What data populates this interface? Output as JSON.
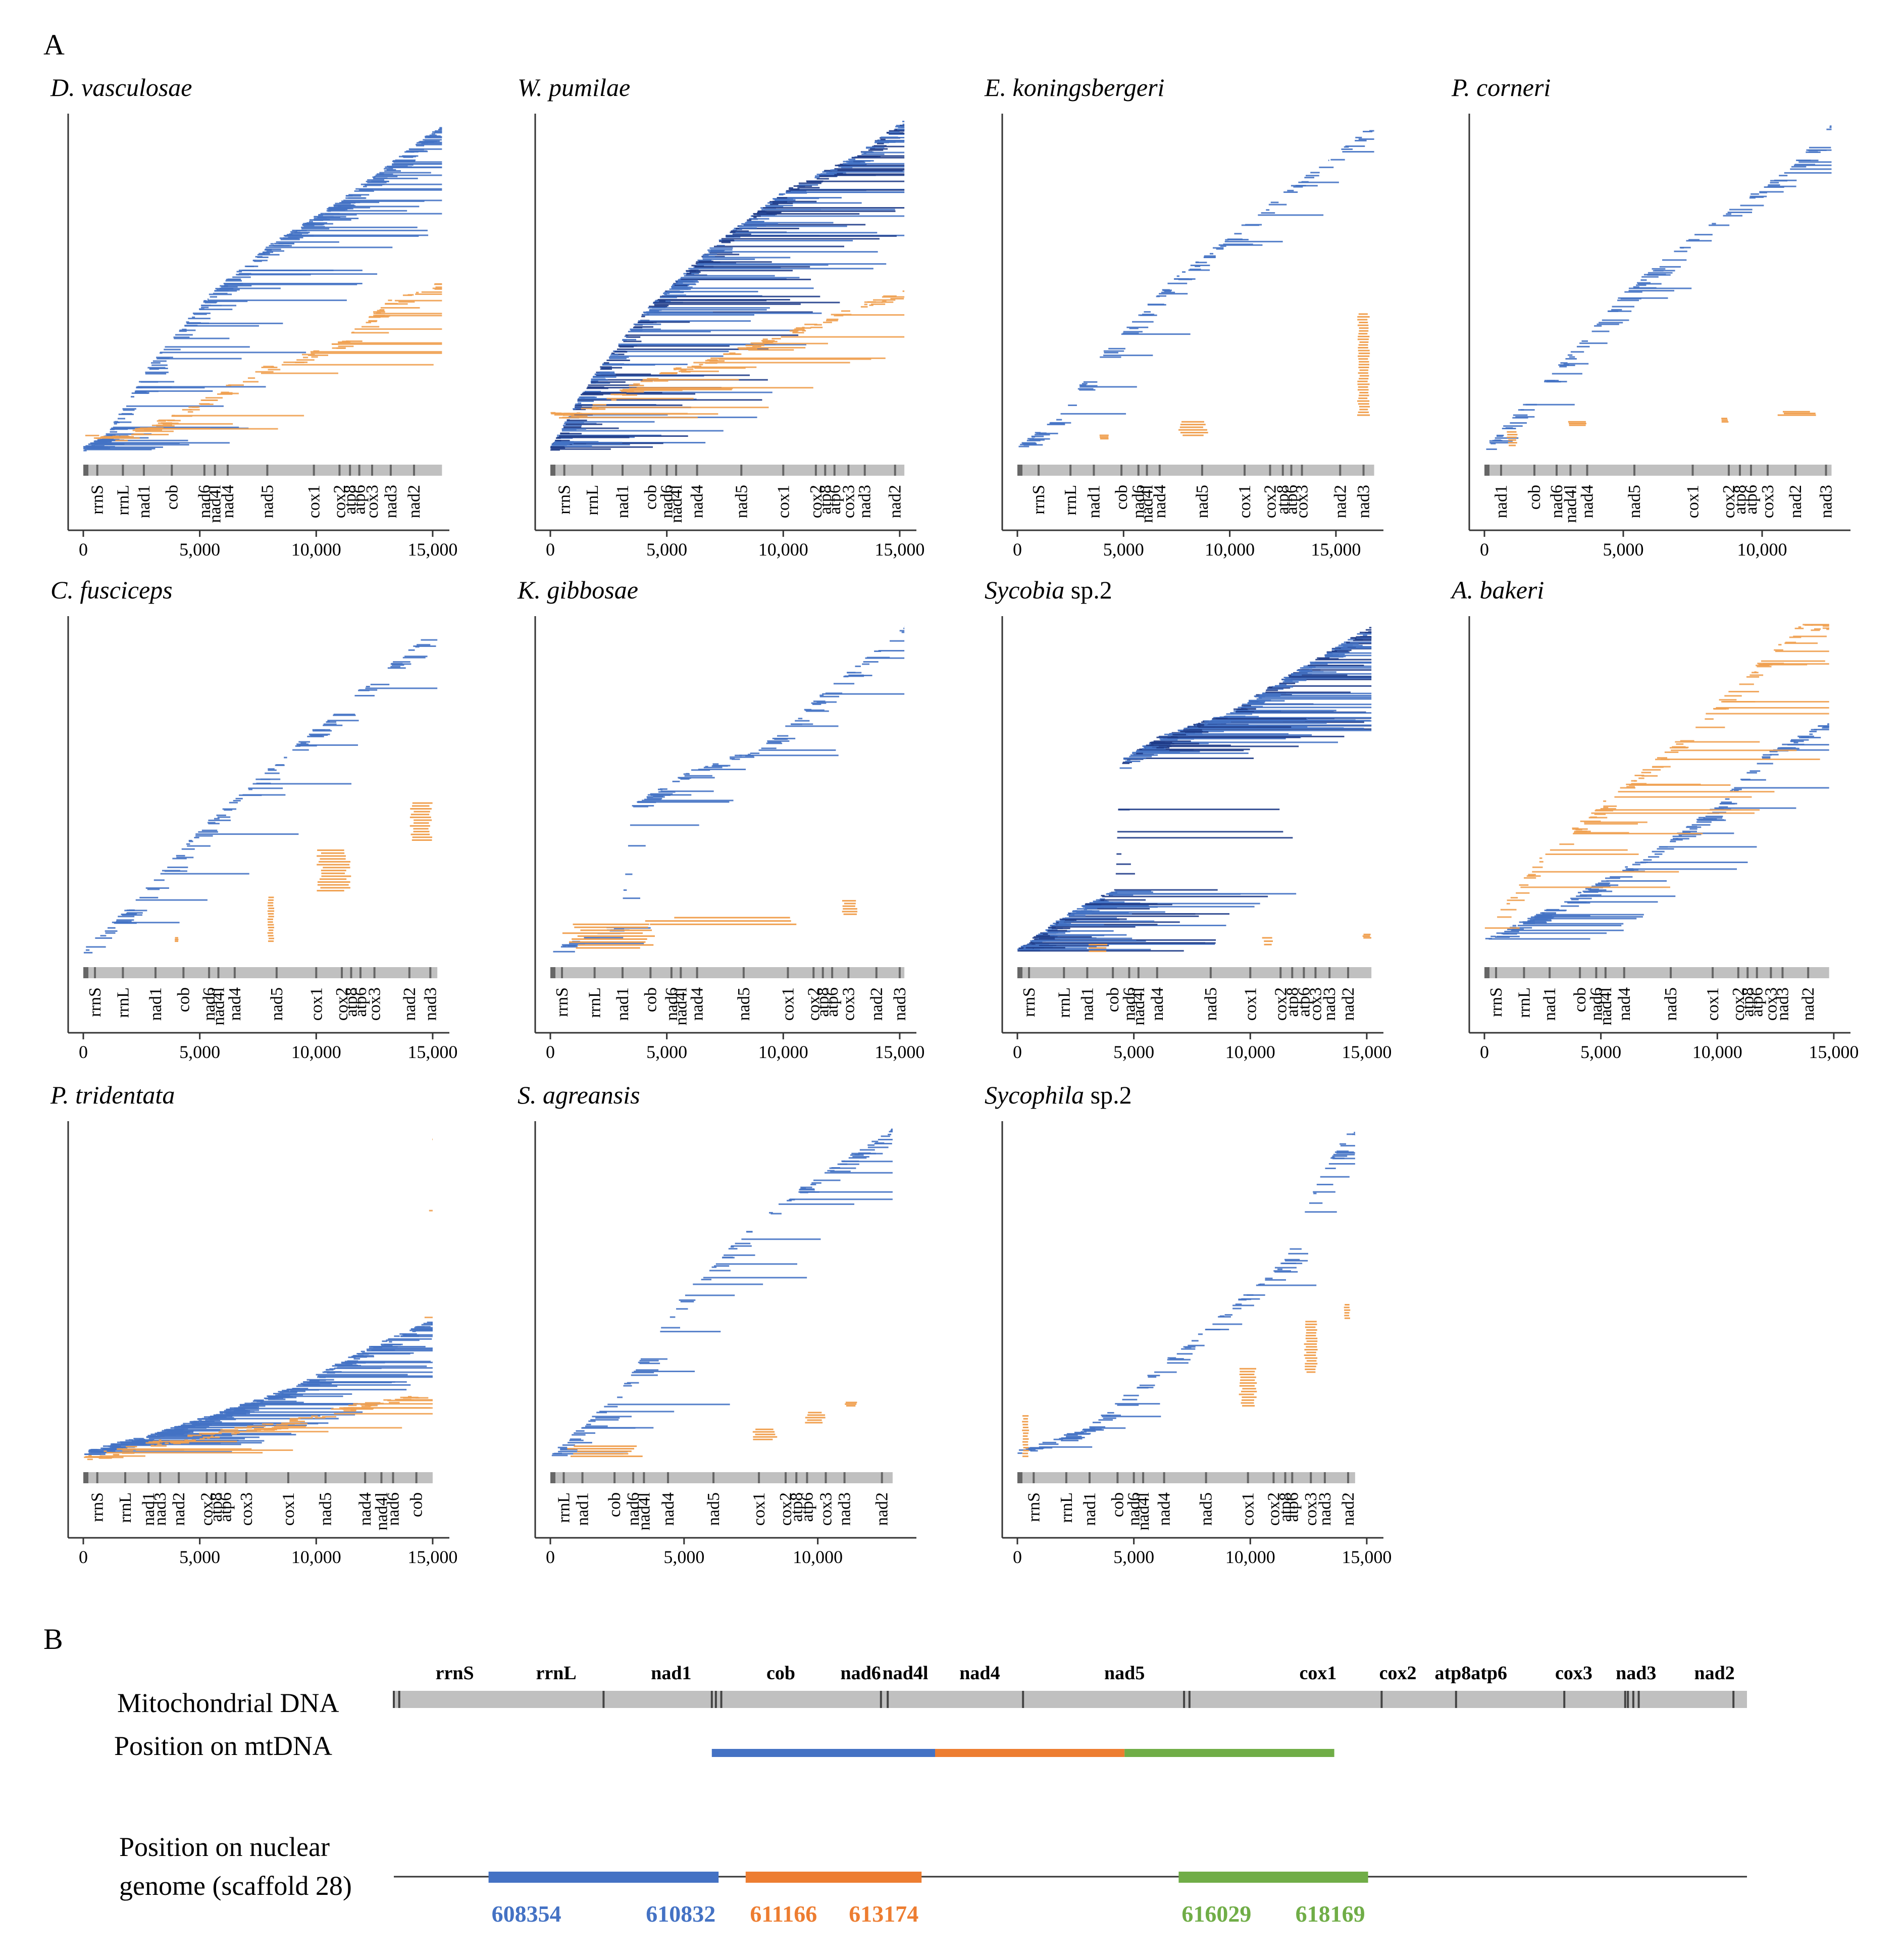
{
  "figure": {
    "panel_a_label": "A",
    "panel_b_label": "B",
    "xtick_labels": [
      "0",
      "5,000",
      "10,000",
      "15,000"
    ],
    "colors": {
      "mt_read": "#4472C4",
      "mt_read_dark": "#1F3C88",
      "numt_read": "#F0A050",
      "genome_bar": "#C0C0C0",
      "genome_tick": "#666666",
      "segment1": "#4472C4",
      "segment2": "#ED7D31",
      "segment3": "#70AD47"
    }
  },
  "chart_data": [
    {
      "type": "scatter",
      "title_italic": "D. vasculosae",
      "title_plain": "",
      "xlim": [
        0,
        15500
      ],
      "genome_length": 15400,
      "genes": [
        "rrnS",
        "rrnL",
        "nad1",
        "cob",
        "nad6",
        "nad4l",
        "nad4",
        "nad5",
        "cox1",
        "cox2",
        "atp8",
        "atp6",
        "cox3",
        "nad3",
        "nad2"
      ],
      "gene_positions": [
        600,
        1700,
        2600,
        3800,
        5200,
        5650,
        6200,
        7900,
        9900,
        11000,
        11450,
        11850,
        12400,
        13200,
        14200
      ],
      "mt_track": [
        [
          0,
          0.02
        ],
        [
          1000,
          0.06
        ],
        [
          3000,
          0.28
        ],
        [
          5500,
          0.48
        ],
        [
          8000,
          0.62
        ],
        [
          11000,
          0.75
        ],
        [
          13500,
          0.88
        ],
        [
          15400,
          0.98
        ]
      ],
      "mt_tail": [
        0.3,
        0.7,
        0.5
      ],
      "mt_density": "dense",
      "numt_visible": true,
      "numt_track": [
        [
          1500,
          0.05
        ],
        [
          4000,
          0.12
        ],
        [
          7500,
          0.25
        ],
        [
          11000,
          0.33
        ],
        [
          13000,
          0.45
        ],
        [
          15400,
          0.51
        ]
      ],
      "numt_density": "medium"
    },
    {
      "type": "scatter",
      "title_italic": "W. pumilae",
      "title_plain": "",
      "xlim": [
        0,
        15500
      ],
      "genome_length": 15200,
      "genes": [
        "rrnS",
        "rrnL",
        "nad1",
        "cob",
        "nad6",
        "nad4l",
        "nad4",
        "nad5",
        "cox1",
        "cox2",
        "atp8",
        "atp6",
        "cox3",
        "nad3",
        "nad2"
      ],
      "gene_positions": [
        600,
        1800,
        3100,
        4300,
        5000,
        5400,
        6300,
        8200,
        10000,
        11400,
        11800,
        12200,
        12800,
        13500,
        14800
      ],
      "mt_track": [
        [
          0,
          0.02
        ],
        [
          1500,
          0.2
        ],
        [
          4000,
          0.42
        ],
        [
          7000,
          0.62
        ],
        [
          10000,
          0.78
        ],
        [
          13000,
          0.88
        ],
        [
          15200,
          0.99
        ]
      ],
      "mt_tail": [
        0.4,
        0.9,
        0.6
      ],
      "mt_density": "very dense",
      "numt_visible": true,
      "numt_track": [
        [
          1000,
          0.12
        ],
        [
          4000,
          0.22
        ],
        [
          8000,
          0.31
        ],
        [
          12000,
          0.41
        ],
        [
          15200,
          0.49
        ]
      ],
      "numt_density": "medium"
    },
    {
      "type": "scatter",
      "title_italic": "E. koningsbergeri",
      "title_plain": "",
      "xlim": [
        0,
        17000
      ],
      "genome_length": 16800,
      "genes": [
        "rrnS",
        "rrnL",
        "nad1",
        "cob",
        "nad6",
        "nad4l",
        "nad4",
        "nad5",
        "cox1",
        "cox2",
        "atp8",
        "atp6",
        "cox3",
        "nad2",
        "nad3"
      ],
      "gene_positions": [
        1000,
        2500,
        3600,
        4900,
        5700,
        6100,
        6700,
        8700,
        10700,
        11900,
        12500,
        12900,
        13400,
        15200,
        16300
      ],
      "mt_track": [
        [
          0,
          0.02
        ],
        [
          2000,
          0.12
        ],
        [
          4000,
          0.3
        ],
        [
          7000,
          0.5
        ],
        [
          10000,
          0.65
        ],
        [
          13000,
          0.8
        ],
        [
          16800,
          0.98
        ]
      ],
      "mt_tail": [
        0.15,
        0.35,
        0.2
      ],
      "mt_density": "sparse",
      "numt_visible": true,
      "numt_clusters": [
        [
          3800,
          4300,
          0.05,
          0.06
        ],
        [
          7500,
          9000,
          0.06,
          0.1
        ],
        [
          16000,
          16600,
          0.12,
          0.42
        ]
      ],
      "numt_density": "sparse"
    },
    {
      "type": "scatter",
      "title_italic": "P. corneri",
      "title_plain": "",
      "xlim": [
        0,
        13000
      ],
      "genome_length": 12500,
      "genes": [
        "nad1",
        "cob",
        "nad6",
        "nad4l",
        "nad4",
        "nad5",
        "cox1",
        "cox2",
        "atp8",
        "atp6",
        "cox3",
        "nad2",
        "nad3"
      ],
      "gene_positions": [
        600,
        1800,
        2600,
        3100,
        3700,
        5400,
        7500,
        8800,
        9200,
        9600,
        10200,
        11200,
        12300
      ],
      "mt_track": [
        [
          0,
          0.02
        ],
        [
          2000,
          0.2
        ],
        [
          5000,
          0.48
        ],
        [
          8000,
          0.68
        ],
        [
          11000,
          0.85
        ],
        [
          12500,
          0.98
        ]
      ],
      "mt_tail": [
        0.2,
        0.45,
        0.25
      ],
      "mt_density": "sparse",
      "numt_visible": true,
      "numt_clusters": [
        [
          800,
          1200,
          0.03,
          0.07
        ],
        [
          3000,
          3800,
          0.09,
          0.1
        ],
        [
          8500,
          8800,
          0.1,
          0.11
        ],
        [
          10500,
          12000,
          0.12,
          0.13
        ]
      ],
      "numt_density": "sparse"
    },
    {
      "type": "scatter",
      "title_italic": "C. fusciceps",
      "title_plain": "",
      "xlim": [
        0,
        15500
      ],
      "genome_length": 15200,
      "genes": [
        "rrnS",
        "rrnL",
        "nad1",
        "cob",
        "nad6",
        "nad4l",
        "nad4",
        "nad5",
        "cox1",
        "cox2",
        "atp8",
        "atp6",
        "cox3",
        "nad2",
        "nad3"
      ],
      "gene_positions": [
        500,
        1700,
        3100,
        4300,
        5400,
        5800,
        6500,
        8300,
        10000,
        11100,
        11500,
        11900,
        12500,
        14000,
        14900
      ],
      "mt_track": [
        [
          0,
          0.02
        ],
        [
          2000,
          0.15
        ],
        [
          5000,
          0.38
        ],
        [
          9000,
          0.62
        ],
        [
          12000,
          0.8
        ],
        [
          15200,
          0.98
        ]
      ],
      "mt_tail": [
        0.15,
        0.5,
        0.25
      ],
      "mt_density": "sparse",
      "numt_visible": true,
      "numt_clusters": [
        [
          3900,
          4100,
          0.05,
          0.06
        ],
        [
          7900,
          8200,
          0.05,
          0.18
        ],
        [
          10000,
          11500,
          0.2,
          0.32
        ],
        [
          14000,
          15000,
          0.35,
          0.46
        ]
      ],
      "numt_density": "sparse"
    },
    {
      "type": "scatter",
      "title_italic": "K. gibbosae",
      "title_plain": "",
      "xlim": [
        0,
        15500
      ],
      "genome_length": 15200,
      "genes": [
        "rrnS",
        "rrnL",
        "nad1",
        "cob",
        "nad6",
        "nad4l",
        "nad4",
        "nad5",
        "cox1",
        "cox2",
        "atp8",
        "atp6",
        "cox3",
        "nad2",
        "nad3"
      ],
      "gene_positions": [
        500,
        1900,
        3100,
        4300,
        5200,
        5600,
        6300,
        8300,
        10200,
        11300,
        11700,
        12100,
        12800,
        14000,
        15000
      ],
      "mt_track": [
        [
          0,
          0.02
        ],
        [
          3000,
          0.1
        ],
        [
          3500,
          0.45
        ],
        [
          6000,
          0.55
        ],
        [
          9000,
          0.62
        ],
        [
          12000,
          0.8
        ],
        [
          15200,
          0.98
        ]
      ],
      "mt_tail": [
        0.15,
        0.5,
        0.25
      ],
      "mt_density": "sparse",
      "numt_visible": true,
      "numt_clusters": [
        [
          500,
          4500,
          0.03,
          0.1
        ],
        [
          4000,
          11000,
          0.1,
          0.12
        ],
        [
          12500,
          13200,
          0.13,
          0.17
        ]
      ],
      "numt_density": "sparse"
    },
    {
      "type": "scatter",
      "title_italic": "Sycobia",
      "title_plain": " sp.2",
      "xlim": [
        0,
        15500
      ],
      "genome_length": 15200,
      "genes": [
        "rrnS",
        "rrnL",
        "nad1",
        "cob",
        "nad6",
        "nad4l",
        "nad4",
        "nad5",
        "cox1",
        "cox2",
        "atp8",
        "atp6",
        "cox3",
        "nad3",
        "nad2"
      ],
      "gene_positions": [
        500,
        2000,
        3000,
        4100,
        4800,
        5200,
        6000,
        8300,
        10000,
        11300,
        11800,
        12300,
        12800,
        13400,
        14200
      ],
      "mt_track": [
        [
          0,
          0.02
        ],
        [
          2000,
          0.12
        ],
        [
          4200,
          0.2
        ],
        [
          4400,
          0.58
        ],
        [
          6000,
          0.65
        ],
        [
          9000,
          0.72
        ],
        [
          12000,
          0.85
        ],
        [
          15200,
          0.98
        ]
      ],
      "mt_tail": [
        0.4,
        0.9,
        0.6
      ],
      "mt_density": "very dense",
      "numt_visible": true,
      "numt_clusters": [
        [
          3000,
          4000,
          0.02,
          0.04
        ],
        [
          10500,
          11000,
          0.04,
          0.06
        ],
        [
          14800,
          15200,
          0.06,
          0.07
        ]
      ],
      "numt_density": "sparse"
    },
    {
      "type": "scatter",
      "title_italic": "A. bakeri",
      "title_plain": "",
      "xlim": [
        0,
        15500
      ],
      "genome_length": 14800,
      "genes": [
        "rrnS",
        "rrnL",
        "nad1",
        "cob",
        "nad6",
        "nad4l",
        "nad4",
        "nad5",
        "cox1",
        "cox2",
        "atp8",
        "atp6",
        "cox3",
        "nad3",
        "nad2"
      ],
      "gene_positions": [
        500,
        1700,
        2800,
        4100,
        4800,
        5200,
        6000,
        8000,
        9800,
        10900,
        11300,
        11700,
        12300,
        12800,
        13900
      ],
      "mt_track": [
        [
          0,
          0.05
        ],
        [
          3000,
          0.15
        ],
        [
          7000,
          0.3
        ],
        [
          10000,
          0.45
        ],
        [
          12000,
          0.6
        ],
        [
          14800,
          0.7
        ]
      ],
      "mt_tail": [
        0.2,
        0.55,
        0.3
      ],
      "mt_density": "medium",
      "numt_visible": true,
      "numt_track": [
        [
          0,
          0.08
        ],
        [
          2500,
          0.3
        ],
        [
          5500,
          0.48
        ],
        [
          8000,
          0.62
        ],
        [
          11000,
          0.82
        ],
        [
          13500,
          0.98
        ]
      ],
      "numt_density": "medium"
    },
    {
      "type": "scatter",
      "title_italic": "P. tridentata",
      "title_plain": "",
      "xlim": [
        0,
        15500
      ],
      "genome_length": 15000,
      "genes": [
        "rrnS",
        "rrnL",
        "nad1",
        "nad3",
        "nad2",
        "cox2",
        "atp8",
        "atp6",
        "cox3",
        "cox1",
        "nad5",
        "nad4",
        "nad4l",
        "nad6",
        "cob"
      ],
      "gene_positions": [
        600,
        1800,
        2800,
        3300,
        4100,
        5300,
        5700,
        6100,
        7000,
        8800,
        10400,
        12100,
        12800,
        13300,
        14300
      ],
      "mt_track": [
        [
          0,
          0.03
        ],
        [
          3000,
          0.08
        ],
        [
          6000,
          0.15
        ],
        [
          9000,
          0.22
        ],
        [
          12000,
          0.33
        ],
        [
          15000,
          0.42
        ]
      ],
      "mt_tail": [
        0.3,
        0.7,
        0.5
      ],
      "mt_density": "dense",
      "numt_visible": true,
      "numt_track": [
        [
          500,
          0.02
        ],
        [
          4000,
          0.07
        ],
        [
          8000,
          0.11
        ],
        [
          11000,
          0.16
        ],
        [
          14500,
          0.2
        ],
        [
          15000,
          0.99
        ]
      ],
      "numt_density": "medium"
    },
    {
      "type": "scatter",
      "title_italic": "S. agreansis",
      "title_plain": "",
      "xlim": [
        0,
        13500
      ],
      "genome_length": 12800,
      "genes": [
        "rrnL",
        "nad1",
        "cob",
        "nad6",
        "nad4l",
        "nad4",
        "nad5",
        "cox1",
        "cox2",
        "atp8",
        "atp6",
        "cox3",
        "nad3",
        "nad2"
      ],
      "gene_positions": [
        500,
        1200,
        2400,
        3100,
        3500,
        4400,
        6100,
        7800,
        8800,
        9200,
        9600,
        10300,
        11000,
        12400
      ],
      "mt_track": [
        [
          0,
          0.02
        ],
        [
          2500,
          0.2
        ],
        [
          5000,
          0.5
        ],
        [
          7500,
          0.7
        ],
        [
          10000,
          0.85
        ],
        [
          12800,
          0.99
        ]
      ],
      "mt_tail": [
        0.2,
        0.6,
        0.3
      ],
      "mt_density": "sparse",
      "numt_visible": true,
      "numt_clusters": [
        [
          500,
          3500,
          0.02,
          0.05
        ],
        [
          7500,
          8500,
          0.07,
          0.1
        ],
        [
          9500,
          10300,
          0.12,
          0.15
        ],
        [
          11000,
          11500,
          0.17,
          0.18
        ]
      ],
      "numt_density": "sparse"
    },
    {
      "type": "scatter",
      "title_italic": "Sycophila",
      "title_plain": " sp.2",
      "xlim": [
        0,
        15500
      ],
      "genome_length": 14500,
      "genes": [
        "rrnS",
        "rrnL",
        "nad1",
        "cob",
        "nad6",
        "nad4l",
        "nad4",
        "nad5",
        "cox1",
        "cox2",
        "atp8",
        "atp6",
        "cox3",
        "nad3",
        "nad2"
      ],
      "gene_positions": [
        700,
        2100,
        3100,
        4300,
        5000,
        5400,
        6300,
        8100,
        9900,
        11000,
        11500,
        11800,
        12600,
        13200,
        14200
      ],
      "mt_track": [
        [
          0,
          0.03
        ],
        [
          3000,
          0.1
        ],
        [
          6000,
          0.28
        ],
        [
          9000,
          0.45
        ],
        [
          11500,
          0.6
        ],
        [
          13000,
          0.85
        ],
        [
          14200,
          0.98
        ]
      ],
      "mt_tail": [
        0.1,
        0.3,
        0.2
      ],
      "mt_density": "sparse",
      "numt_visible": true,
      "numt_clusters": [
        [
          200,
          500,
          0.02,
          0.14
        ],
        [
          9500,
          10300,
          0.17,
          0.28
        ],
        [
          12300,
          12900,
          0.27,
          0.42
        ],
        [
          14000,
          14300,
          0.43,
          0.47
        ]
      ],
      "numt_density": "sparse"
    },
    {
      "type": "map",
      "panel": "B",
      "row_labels": {
        "mtdna": "Mitochondrial DNA",
        "position_mt": "Position on mtDNA",
        "position_nuc_line1": "Position on nuclear",
        "position_nuc_line2": "genome (scaffold 28)"
      },
      "mt_genes": [
        "rrnS",
        "rrnL",
        "nad1",
        "cob",
        "nad6",
        "nad4l",
        "nad4",
        "nad5",
        "cox1",
        "cox2",
        "atp8atp6",
        "cox3",
        "nad3",
        "nad2"
      ],
      "mt_gene_positions": [
        0.045,
        0.12,
        0.205,
        0.286,
        0.345,
        0.378,
        0.433,
        0.54,
        0.683,
        0.742,
        0.796,
        0.872,
        0.918,
        0.976
      ],
      "mt_ticks": [
        0.0,
        0.004,
        0.155,
        0.235,
        0.238,
        0.242,
        0.36,
        0.365,
        0.465,
        0.584,
        0.588,
        0.73,
        0.785,
        0.865,
        0.91,
        0.912,
        0.916,
        0.92,
        0.99
      ],
      "mt_segments": [
        [
          0.235,
          0.4
        ],
        [
          0.4,
          0.54
        ],
        [
          0.54,
          0.695
        ]
      ],
      "nuclear_coordinates": [
        "608354",
        "610832",
        "611166",
        "613174",
        "616029",
        "618169"
      ],
      "nuclear_segments": [
        [
          0.07,
          0.24
        ],
        [
          0.26,
          0.39
        ],
        [
          0.58,
          0.72
        ]
      ]
    }
  ]
}
